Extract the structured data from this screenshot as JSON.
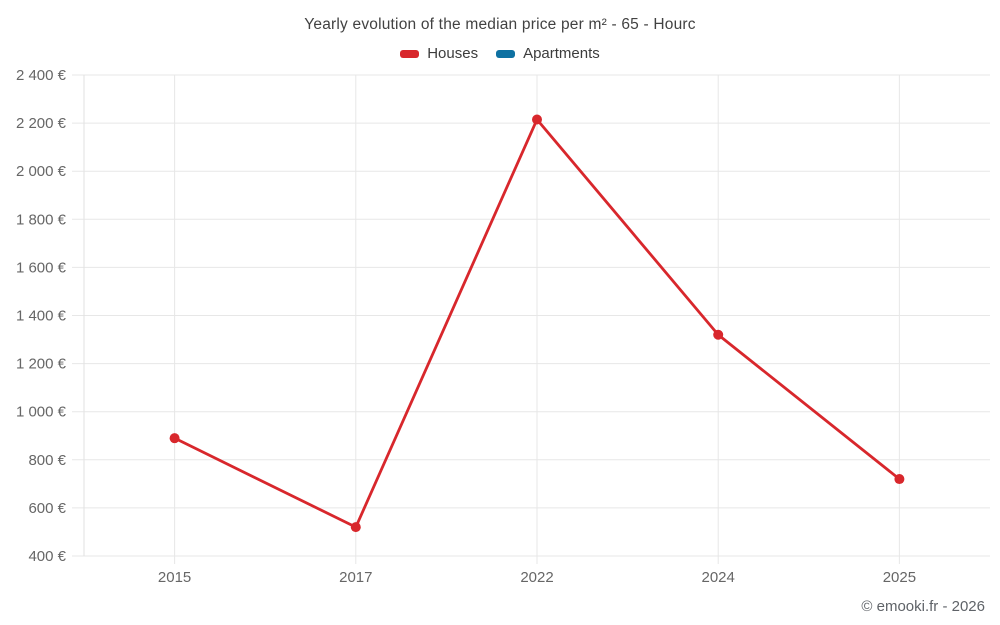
{
  "title": "Yearly evolution of the median price per m² - 65 - Hourc",
  "legend": {
    "items": [
      {
        "label": "Houses",
        "color": "#d8272c"
      },
      {
        "label": "Apartments",
        "color": "#0e71a2"
      }
    ]
  },
  "attribution": "© emooki.fr - 2026",
  "chart_data": {
    "type": "line",
    "title": "Yearly evolution of the median price per m² - 65 - Hourc",
    "categories": [
      "2015",
      "2017",
      "2022",
      "2024",
      "2025"
    ],
    "series": [
      {
        "name": "Houses",
        "color": "#d8272c",
        "values": [
          890,
          520,
          2215,
          1320,
          720
        ]
      },
      {
        "name": "Apartments",
        "color": "#0e71a2",
        "values": []
      }
    ],
    "xlabel": "",
    "ylabel": "",
    "ylim": [
      400,
      2400
    ],
    "y_ticks": [
      400,
      600,
      800,
      1000,
      1200,
      1400,
      1600,
      1800,
      2000,
      2200,
      2400
    ],
    "y_tick_labels": [
      "400 €",
      "600 €",
      "800 €",
      "1 000 €",
      "1 200 €",
      "1 400 €",
      "1 600 €",
      "1 800 €",
      "2 000 €",
      "2 200 €",
      "2 400 €"
    ],
    "grid": true,
    "legend_position": "top",
    "marker": "circle"
  }
}
